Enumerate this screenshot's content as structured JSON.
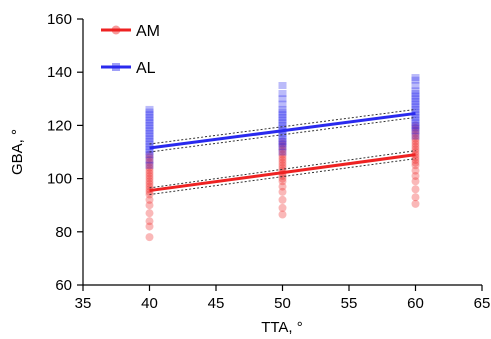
{
  "chart_data": {
    "type": "scatter",
    "xlabel": "TTA, °",
    "ylabel": "GBA, °",
    "xlim": [
      35,
      65
    ],
    "ylim": [
      60,
      160
    ],
    "xticks": [
      35,
      40,
      45,
      50,
      55,
      60,
      65
    ],
    "yticks": [
      60,
      80,
      100,
      120,
      140,
      160
    ],
    "grid": false,
    "legend_position": "top-left",
    "series": [
      {
        "name": "AM",
        "color": "#ee2222",
        "marker": "circle",
        "fit": {
          "x": [
            40,
            60
          ],
          "y": [
            95.5,
            109.0
          ],
          "ci_upper": [
            96.5,
            110.5
          ],
          "ci_lower": [
            94.0,
            107.5
          ]
        },
        "points": [
          {
            "x": 40,
            "y_values": [
              78,
              82,
              84,
              87,
              90,
              92,
              94,
              95,
              96,
              97,
              98,
              99,
              100,
              101,
              102,
              103,
              104,
              105,
              106,
              107,
              108,
              109
            ]
          },
          {
            "x": 50,
            "y_values": [
              86.5,
              89,
              92,
              95,
              97,
              99,
              100,
              101,
              102,
              103,
              104,
              105,
              106,
              107,
              108,
              109,
              110,
              111,
              112,
              113,
              114
            ]
          },
          {
            "x": 60,
            "y_values": [
              90.5,
              93,
              96,
              99,
              101,
              103,
              105,
              106,
              107,
              108,
              109,
              110,
              111,
              112,
              113,
              114,
              115,
              116,
              117,
              118,
              119,
              120
            ]
          }
        ]
      },
      {
        "name": "AL",
        "color": "#2a2aee",
        "marker": "square",
        "fit": {
          "x": [
            40,
            60
          ],
          "y": [
            111.5,
            124.5
          ],
          "ci_upper": [
            113.0,
            126.0
          ],
          "ci_lower": [
            110.0,
            123.0
          ]
        },
        "points": [
          {
            "x": 40,
            "y_values": [
              105,
              107,
              109,
              110,
              111,
              112,
              113,
              114,
              115,
              116,
              117,
              118,
              119,
              120,
              121,
              122,
              123,
              124,
              125,
              126
            ]
          },
          {
            "x": 50,
            "y_values": [
              110,
              112,
              113,
              114,
              115,
              116,
              117,
              118,
              119,
              120,
              121,
              122,
              123,
              124,
              125,
              126,
              128,
              130,
              132,
              135
            ]
          },
          {
            "x": 60,
            "y_values": [
              116,
              118,
              119,
              120,
              121,
              122,
              123,
              124,
              125,
              126,
              127,
              128,
              129,
              130,
              131,
              132,
              133,
              135,
              137,
              138
            ]
          }
        ]
      }
    ]
  }
}
